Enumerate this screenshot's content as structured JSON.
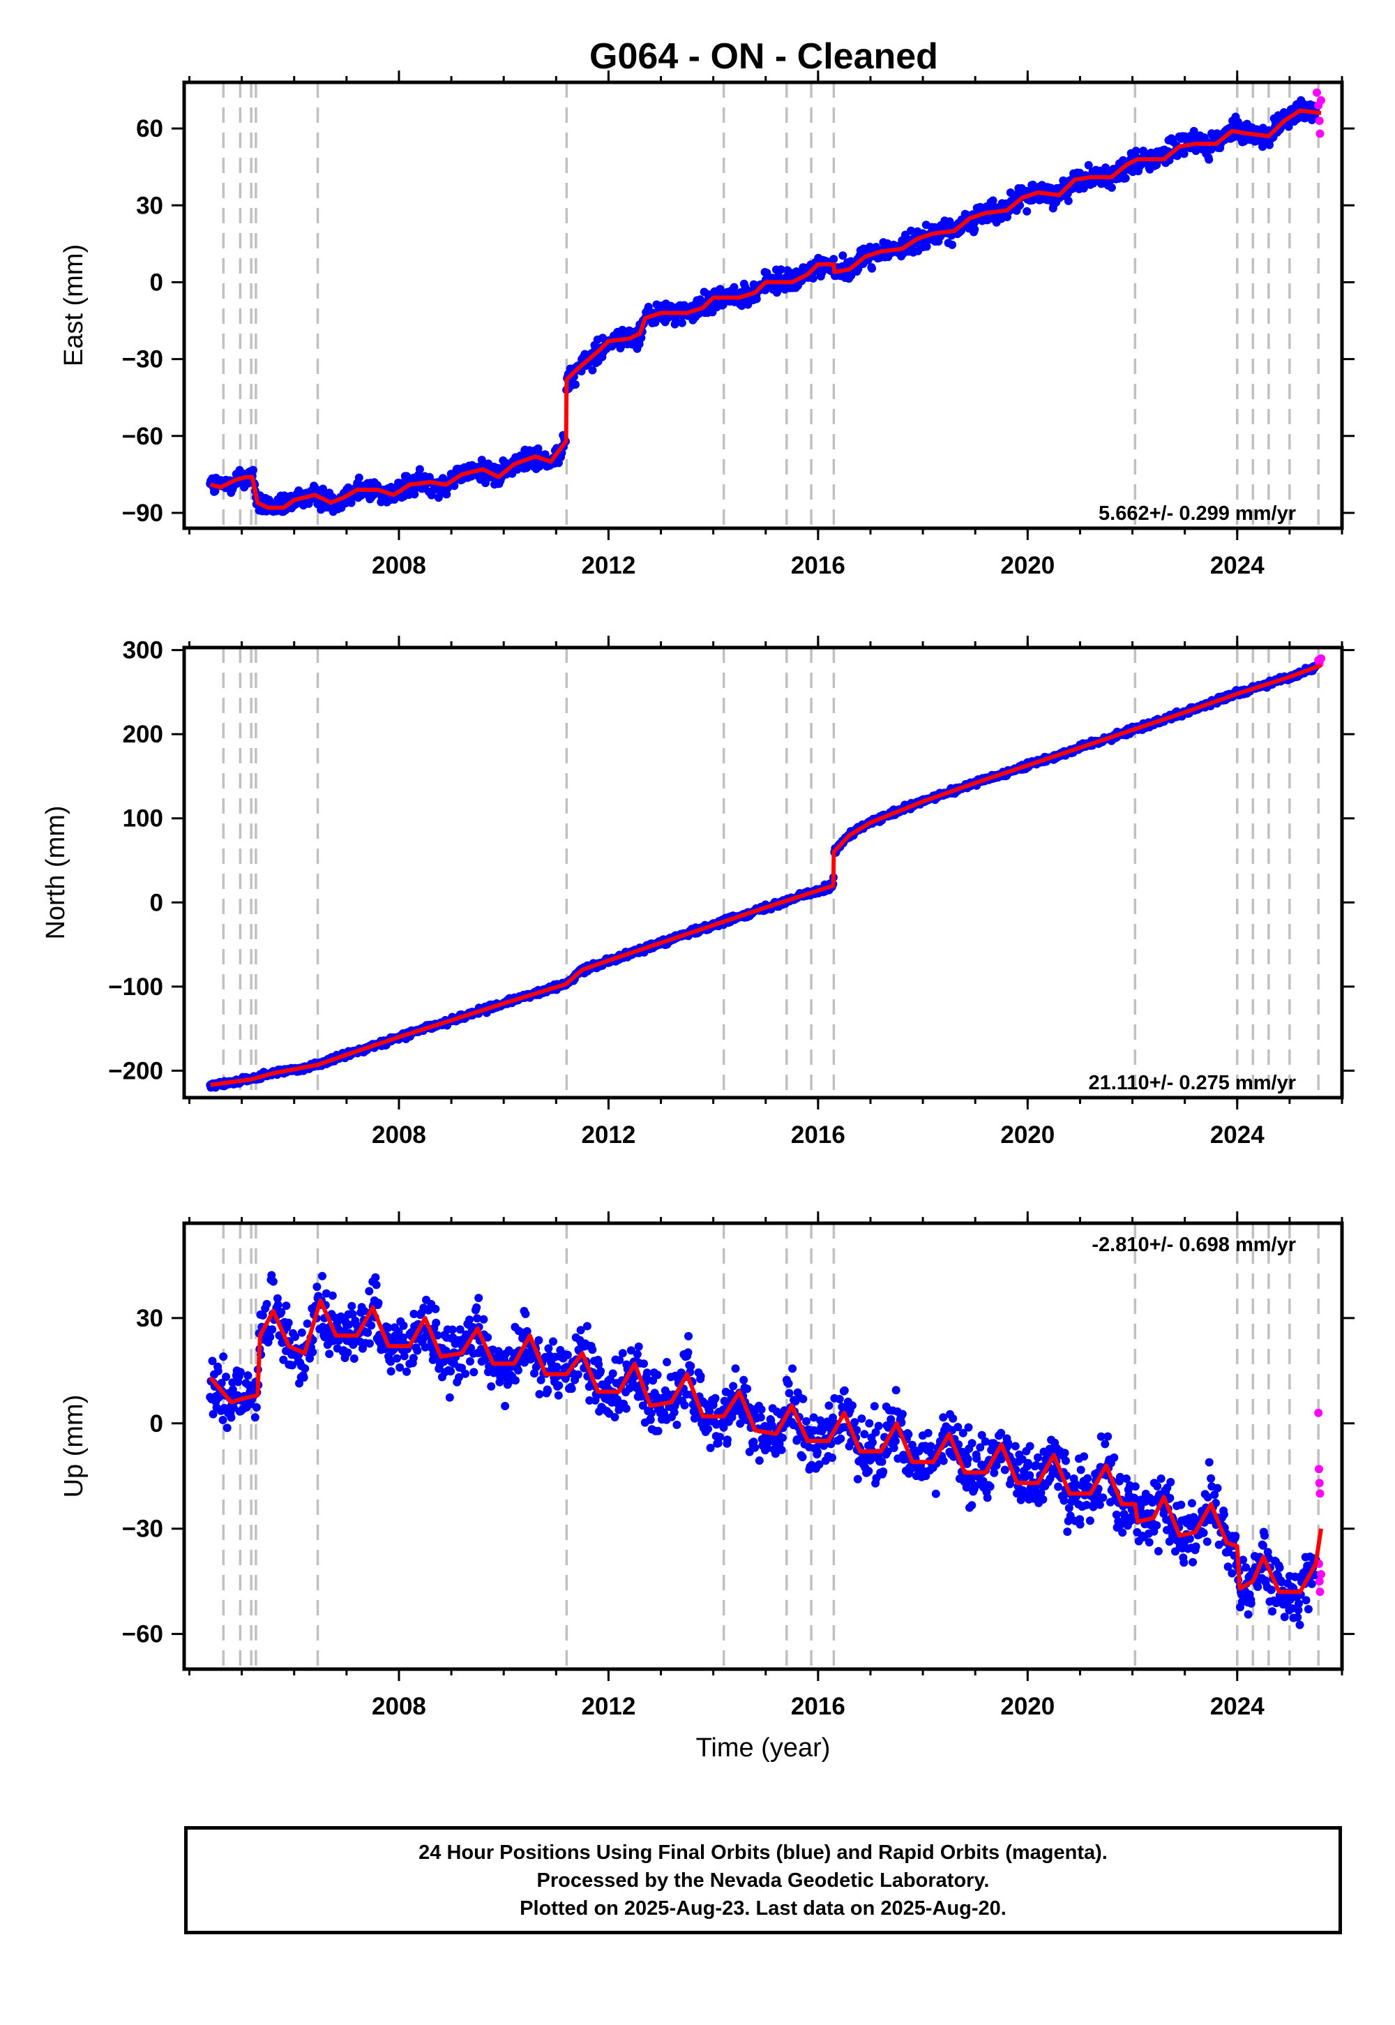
{
  "title": "G064  - ON - Cleaned",
  "colors": {
    "final_orbits": "#0000ff",
    "rapid_orbits": "#ff00ff",
    "model": "#ff0000",
    "events": "#c0c0c0"
  },
  "x_axis_label": "Time (year)",
  "footer": {
    "line1": "24 Hour Positions Using Final Orbits (blue) and Rapid Orbits (magenta).",
    "line2": "Processed by the Nevada Geodetic Laboratory.",
    "line3": "Plotted on 2025-Aug-23. Last data on 2025-Aug-20."
  },
  "chart_data": [
    {
      "type": "scatter",
      "name": "east",
      "ylabel": "East (mm)",
      "rate_text": "5.662+/- 0.299 mm/yr",
      "xlim": [
        2003.9,
        2026.0
      ],
      "ylim": [
        -96,
        78
      ],
      "x_ticks": [
        2008,
        2012,
        2016,
        2020,
        2024
      ],
      "y_ticks": [
        -90,
        -60,
        -30,
        0,
        30,
        60
      ],
      "event_lines": [
        2004.65,
        2004.97,
        2005.18,
        2005.27,
        2006.45,
        2011.2,
        2014.2,
        2015.4,
        2015.87,
        2016.3,
        2022.05,
        2024.0,
        2024.3,
        2024.6,
        2025.0,
        2025.55
      ],
      "model": [
        [
          2004.4,
          -79
        ],
        [
          2004.6,
          -80
        ],
        [
          2004.9,
          -77
        ],
        [
          2005.1,
          -76
        ],
        [
          2005.2,
          -76
        ],
        [
          2005.3,
          -86
        ],
        [
          2005.5,
          -88
        ],
        [
          2005.8,
          -88
        ],
        [
          2006.0,
          -85
        ],
        [
          2006.4,
          -83
        ],
        [
          2006.7,
          -86
        ],
        [
          2006.95,
          -84
        ],
        [
          2007.2,
          -81
        ],
        [
          2007.6,
          -81
        ],
        [
          2007.9,
          -83
        ],
        [
          2008.2,
          -79
        ],
        [
          2008.6,
          -78
        ],
        [
          2008.9,
          -79
        ],
        [
          2009.2,
          -75
        ],
        [
          2009.6,
          -73
        ],
        [
          2009.9,
          -76
        ],
        [
          2010.2,
          -71
        ],
        [
          2010.6,
          -68
        ],
        [
          2010.9,
          -70
        ],
        [
          2011.19,
          -62
        ],
        [
          2011.2,
          -38
        ],
        [
          2011.4,
          -34
        ],
        [
          2011.8,
          -27
        ],
        [
          2012.0,
          -23
        ],
        [
          2012.4,
          -22
        ],
        [
          2012.6,
          -20
        ],
        [
          2012.7,
          -14
        ],
        [
          2013.0,
          -12
        ],
        [
          2013.5,
          -12
        ],
        [
          2013.8,
          -10
        ],
        [
          2014.0,
          -6
        ],
        [
          2014.5,
          -6
        ],
        [
          2014.8,
          -4
        ],
        [
          2015.0,
          0
        ],
        [
          2015.5,
          0
        ],
        [
          2015.8,
          3
        ],
        [
          2016.0,
          7
        ],
        [
          2016.3,
          7
        ],
        [
          2016.31,
          4
        ],
        [
          2016.6,
          5
        ],
        [
          2016.9,
          10
        ],
        [
          2017.2,
          12
        ],
        [
          2017.6,
          13
        ],
        [
          2017.9,
          17
        ],
        [
          2018.2,
          19
        ],
        [
          2018.6,
          20
        ],
        [
          2018.9,
          25
        ],
        [
          2019.2,
          27
        ],
        [
          2019.6,
          28
        ],
        [
          2019.9,
          33
        ],
        [
          2020.2,
          35
        ],
        [
          2020.6,
          34
        ],
        [
          2020.9,
          40
        ],
        [
          2021.2,
          41
        ],
        [
          2021.6,
          41
        ],
        [
          2021.9,
          46
        ],
        [
          2022.1,
          48
        ],
        [
          2022.6,
          48
        ],
        [
          2022.9,
          53
        ],
        [
          2023.2,
          54
        ],
        [
          2023.6,
          54
        ],
        [
          2023.9,
          59
        ],
        [
          2024.2,
          58
        ],
        [
          2024.6,
          57
        ],
        [
          2024.9,
          63
        ],
        [
          2025.2,
          67
        ],
        [
          2025.6,
          66
        ]
      ],
      "blue_noise_mm": 3.0,
      "rapid_points": [
        [
          2025.52,
          74
        ],
        [
          2025.55,
          69
        ],
        [
          2025.57,
          63
        ],
        [
          2025.58,
          58
        ],
        [
          2025.6,
          71
        ]
      ]
    },
    {
      "type": "scatter",
      "name": "north",
      "ylabel": "North (mm)",
      "rate_text": "21.110+/- 0.275 mm/yr",
      "xlim": [
        2003.9,
        2026.0
      ],
      "ylim": [
        -232,
        303
      ],
      "x_ticks": [
        2008,
        2012,
        2016,
        2020,
        2024
      ],
      "y_ticks": [
        -200,
        -100,
        0,
        100,
        200,
        300
      ],
      "event_lines": [
        2004.65,
        2004.97,
        2005.18,
        2005.27,
        2006.45,
        2011.2,
        2014.2,
        2015.4,
        2015.87,
        2016.3,
        2022.05,
        2024.0,
        2024.3,
        2024.6,
        2025.0,
        2025.55
      ],
      "model": [
        [
          2004.4,
          -217
        ],
        [
          2005.2,
          -210
        ],
        [
          2005.6,
          -203
        ],
        [
          2006.45,
          -193
        ],
        [
          2007.0,
          -181
        ],
        [
          2008.0,
          -160
        ],
        [
          2009.0,
          -140
        ],
        [
          2010.0,
          -120
        ],
        [
          2011.19,
          -97
        ],
        [
          2011.5,
          -80
        ],
        [
          2012.0,
          -69
        ],
        [
          2013.0,
          -48
        ],
        [
          2014.0,
          -27
        ],
        [
          2015.0,
          -6
        ],
        [
          2016.29,
          20
        ],
        [
          2016.3,
          60
        ],
        [
          2016.6,
          80
        ],
        [
          2017.0,
          95
        ],
        [
          2018.0,
          120
        ],
        [
          2019.0,
          142
        ],
        [
          2020.0,
          163
        ],
        [
          2021.0,
          184
        ],
        [
          2022.0,
          205
        ],
        [
          2023.0,
          226
        ],
        [
          2024.0,
          248
        ],
        [
          2025.0,
          268
        ],
        [
          2025.6,
          282
        ]
      ],
      "blue_noise_mm": 2.5,
      "rapid_points": [
        [
          2025.55,
          288
        ],
        [
          2025.57,
          284
        ],
        [
          2025.6,
          290
        ]
      ]
    },
    {
      "type": "scatter",
      "name": "up",
      "ylabel": "Up (mm)",
      "rate_text": "-2.810+/- 0.698 mm/yr",
      "xlim": [
        2003.9,
        2026.0
      ],
      "ylim": [
        -70,
        57
      ],
      "x_ticks": [
        2008,
        2012,
        2016,
        2020,
        2024
      ],
      "y_ticks": [
        -60,
        -30,
        0,
        30
      ],
      "event_lines": [
        2004.65,
        2004.97,
        2005.18,
        2005.27,
        2006.45,
        2011.2,
        2014.2,
        2015.4,
        2015.87,
        2016.3,
        2022.05,
        2024.0,
        2024.3,
        2024.6,
        2025.0,
        2025.55
      ],
      "model": [
        [
          2004.4,
          13
        ],
        [
          2004.8,
          6
        ],
        [
          2005.0,
          7
        ],
        [
          2005.3,
          8
        ],
        [
          2005.35,
          25
        ],
        [
          2005.6,
          32
        ],
        [
          2005.9,
          22
        ],
        [
          2006.2,
          20
        ],
        [
          2006.5,
          35
        ],
        [
          2006.8,
          25
        ],
        [
          2007.2,
          25
        ],
        [
          2007.5,
          33
        ],
        [
          2007.8,
          22
        ],
        [
          2008.2,
          22
        ],
        [
          2008.5,
          30
        ],
        [
          2008.8,
          19
        ],
        [
          2009.2,
          20
        ],
        [
          2009.5,
          27
        ],
        [
          2009.8,
          17
        ],
        [
          2010.2,
          17
        ],
        [
          2010.5,
          25
        ],
        [
          2010.8,
          14
        ],
        [
          2011.2,
          14
        ],
        [
          2011.5,
          20
        ],
        [
          2011.8,
          9
        ],
        [
          2012.2,
          9
        ],
        [
          2012.5,
          17
        ],
        [
          2012.8,
          5
        ],
        [
          2013.2,
          6
        ],
        [
          2013.5,
          14
        ],
        [
          2013.8,
          2
        ],
        [
          2014.2,
          2
        ],
        [
          2014.5,
          9
        ],
        [
          2014.8,
          -2
        ],
        [
          2015.2,
          -3
        ],
        [
          2015.5,
          5
        ],
        [
          2015.8,
          -5
        ],
        [
          2016.2,
          -5
        ],
        [
          2016.5,
          3
        ],
        [
          2016.8,
          -8
        ],
        [
          2017.2,
          -8
        ],
        [
          2017.5,
          0
        ],
        [
          2017.8,
          -11
        ],
        [
          2018.2,
          -11
        ],
        [
          2018.5,
          -3
        ],
        [
          2018.8,
          -14
        ],
        [
          2019.2,
          -14
        ],
        [
          2019.5,
          -6
        ],
        [
          2019.8,
          -17
        ],
        [
          2020.2,
          -17
        ],
        [
          2020.5,
          -9
        ],
        [
          2020.8,
          -20
        ],
        [
          2021.2,
          -20
        ],
        [
          2021.5,
          -12
        ],
        [
          2021.8,
          -23
        ],
        [
          2022.05,
          -23
        ],
        [
          2022.1,
          -28
        ],
        [
          2022.4,
          -27
        ],
        [
          2022.6,
          -21
        ],
        [
          2022.9,
          -32
        ],
        [
          2023.2,
          -31
        ],
        [
          2023.5,
          -23
        ],
        [
          2023.8,
          -34
        ],
        [
          2024.0,
          -35
        ],
        [
          2024.05,
          -47
        ],
        [
          2024.3,
          -45
        ],
        [
          2024.5,
          -38
        ],
        [
          2024.8,
          -48
        ],
        [
          2025.2,
          -48
        ],
        [
          2025.5,
          -40
        ],
        [
          2025.6,
          -30
        ]
      ],
      "blue_noise_mm": 6.0,
      "rapid_points": [
        [
          2025.55,
          3
        ],
        [
          2025.56,
          -13
        ],
        [
          2025.57,
          -17
        ],
        [
          2025.58,
          -20
        ],
        [
          2025.56,
          -40
        ],
        [
          2025.57,
          -45
        ],
        [
          2025.58,
          -48
        ],
        [
          2025.6,
          -43
        ]
      ]
    }
  ]
}
